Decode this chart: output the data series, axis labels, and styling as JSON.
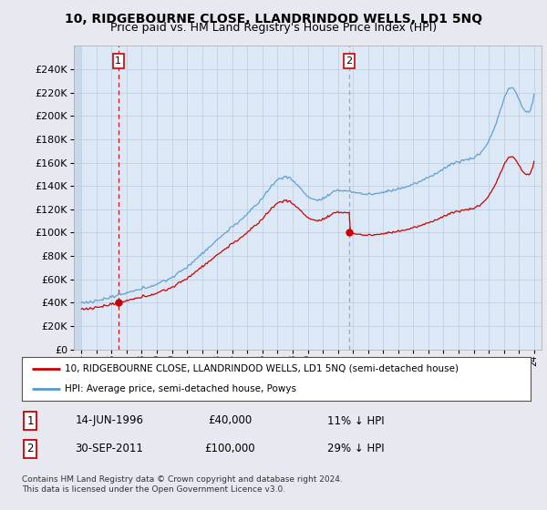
{
  "title": "10, RIDGEBOURNE CLOSE, LLANDRINDOD WELLS, LD1 5NQ",
  "subtitle": "Price paid vs. HM Land Registry's House Price Index (HPI)",
  "ylim": [
    0,
    260000
  ],
  "yticks": [
    0,
    20000,
    40000,
    60000,
    80000,
    100000,
    120000,
    140000,
    160000,
    180000,
    200000,
    220000,
    240000
  ],
  "sale1_price": 40000,
  "sale1_x": 1996.45,
  "sale2_price": 100000,
  "sale2_x": 2011.75,
  "legend_property": "10, RIDGEBOURNE CLOSE, LLANDRINDOD WELLS, LD1 5NQ (semi-detached house)",
  "legend_hpi": "HPI: Average price, semi-detached house, Powys",
  "footnote1": "Contains HM Land Registry data © Crown copyright and database right 2024.",
  "footnote2": "This data is licensed under the Open Government Licence v3.0.",
  "table_row1_date": "14-JUN-1996",
  "table_row1_price": "£40,000",
  "table_row1_hpi": "11% ↓ HPI",
  "table_row2_date": "30-SEP-2011",
  "table_row2_price": "£100,000",
  "table_row2_hpi": "29% ↓ HPI",
  "property_color": "#cc0000",
  "hpi_color": "#5599cc",
  "background_color": "#e8e8f0",
  "plot_bg_color": "#dce8f5",
  "hatch_color": "#c8d8e8",
  "grid_color": "#b8cce0",
  "annotation_box_color": "#cc0000",
  "dashed1_color": "#cc0000",
  "dashed2_color": "#999999",
  "title_fontsize": 10,
  "subtitle_fontsize": 9
}
